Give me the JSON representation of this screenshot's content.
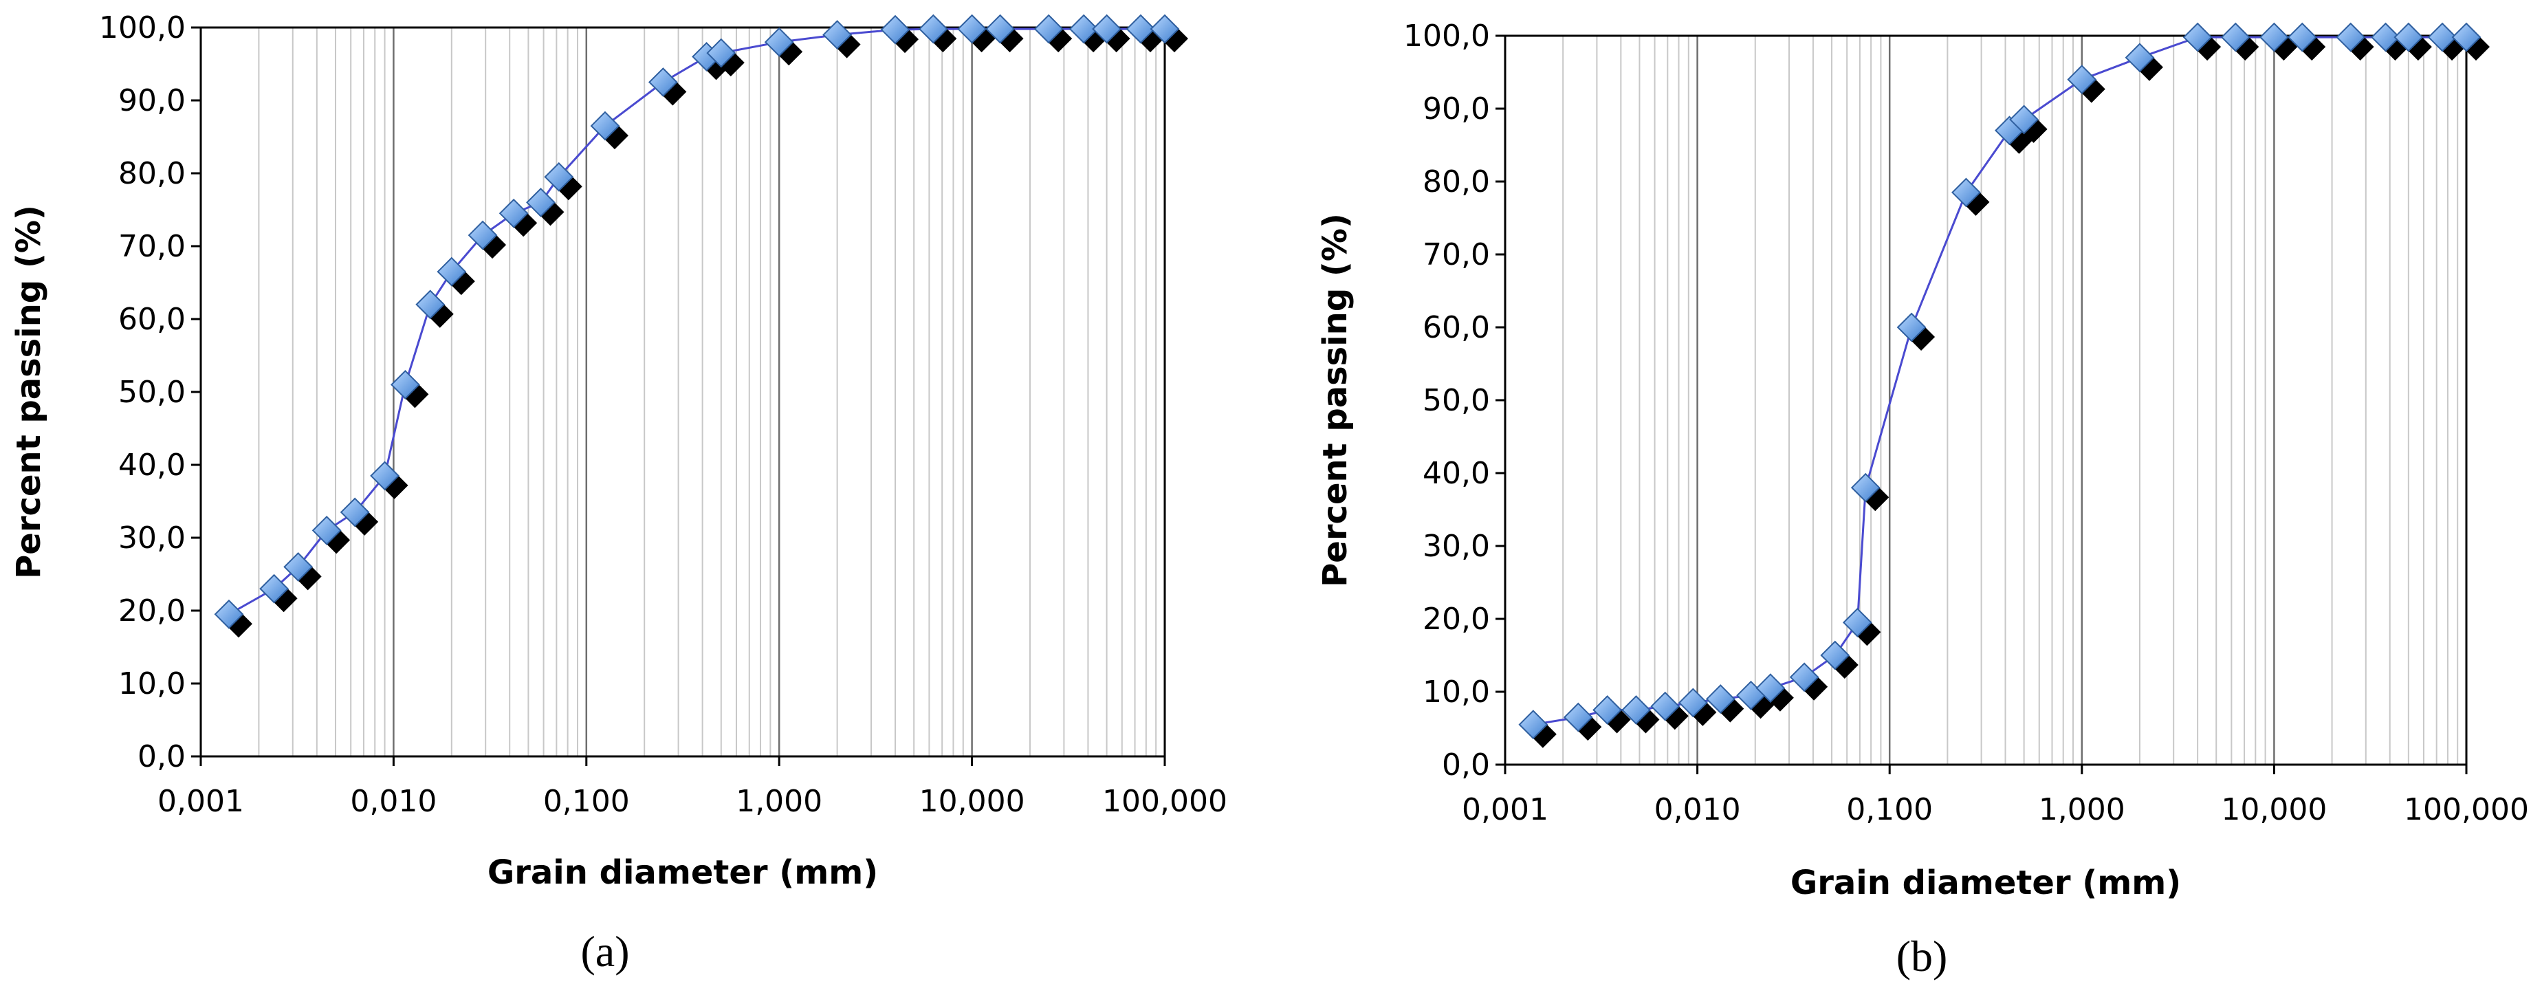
{
  "chart_data": [
    {
      "type": "scatter",
      "panel_label": "(a)",
      "xlabel": "Grain diameter (mm)",
      "ylabel": "Percent passing (%)",
      "x_scale": "log",
      "xlim": [
        0.001,
        100
      ],
      "ylim": [
        0,
        100
      ],
      "x_ticks": [
        "0,001",
        "0,010",
        "0,100",
        "1,000",
        "10,000",
        "100,000"
      ],
      "y_ticks": [
        "0,0",
        "10,0",
        "20,0",
        "30,0",
        "40,0",
        "50,0",
        "60,0",
        "70,0",
        "80,0",
        "90,0",
        "100,0"
      ],
      "grid": true,
      "series": [
        {
          "x": [
            0.0014,
            0.0024,
            0.0032,
            0.0045,
            0.0063,
            0.009,
            0.0115,
            0.0155,
            0.02,
            0.029,
            0.042,
            0.058,
            0.072,
            0.125,
            0.25,
            0.42,
            0.5,
            1.0,
            2.0,
            4.0,
            6.3,
            10,
            14,
            25,
            38,
            50,
            75,
            100
          ],
          "y": [
            19.5,
            23.0,
            26.0,
            31.0,
            33.5,
            38.5,
            51.0,
            62.0,
            66.5,
            71.5,
            74.5,
            76.0,
            79.5,
            86.5,
            92.5,
            96.0,
            96.5,
            98.0,
            99.0,
            99.7,
            99.8,
            99.8,
            99.8,
            99.8,
            99.8,
            99.8,
            99.8,
            99.8
          ]
        }
      ]
    },
    {
      "type": "scatter",
      "panel_label": "(b)",
      "xlabel": "Grain diameter (mm)",
      "ylabel": "Percent passing (%)",
      "x_scale": "log",
      "xlim": [
        0.001,
        100
      ],
      "ylim": [
        0,
        100
      ],
      "x_ticks": [
        "0,001",
        "0,010",
        "0,100",
        "1,000",
        "10,000",
        "100,000"
      ],
      "y_ticks": [
        "0,0",
        "10,0",
        "20,0",
        "30,0",
        "40,0",
        "50,0",
        "60,0",
        "70,0",
        "80,0",
        "90,0",
        "100,0"
      ],
      "grid": true,
      "series": [
        {
          "x": [
            0.0014,
            0.0024,
            0.0034,
            0.0048,
            0.0068,
            0.0095,
            0.0132,
            0.019,
            0.024,
            0.036,
            0.052,
            0.068,
            0.075,
            0.13,
            0.25,
            0.42,
            0.5,
            1.0,
            2.0,
            4.0,
            6.3,
            10,
            14,
            25,
            38,
            50,
            75,
            100
          ],
          "y": [
            5.5,
            6.5,
            7.5,
            7.5,
            8.0,
            8.5,
            9.0,
            9.5,
            10.5,
            12.0,
            15.0,
            19.5,
            38.0,
            60.0,
            78.5,
            87.0,
            88.5,
            94.0,
            97.0,
            99.8,
            99.8,
            99.8,
            99.8,
            99.8,
            99.8,
            99.8,
            99.8,
            99.8
          ]
        }
      ]
    }
  ],
  "colors": {
    "line": "#4a4ad0",
    "marker_face": "#6fa8e8",
    "marker_shadow": "#000000",
    "grid_major": "#6e6e6e",
    "grid_minor": "#c8c8c8"
  }
}
